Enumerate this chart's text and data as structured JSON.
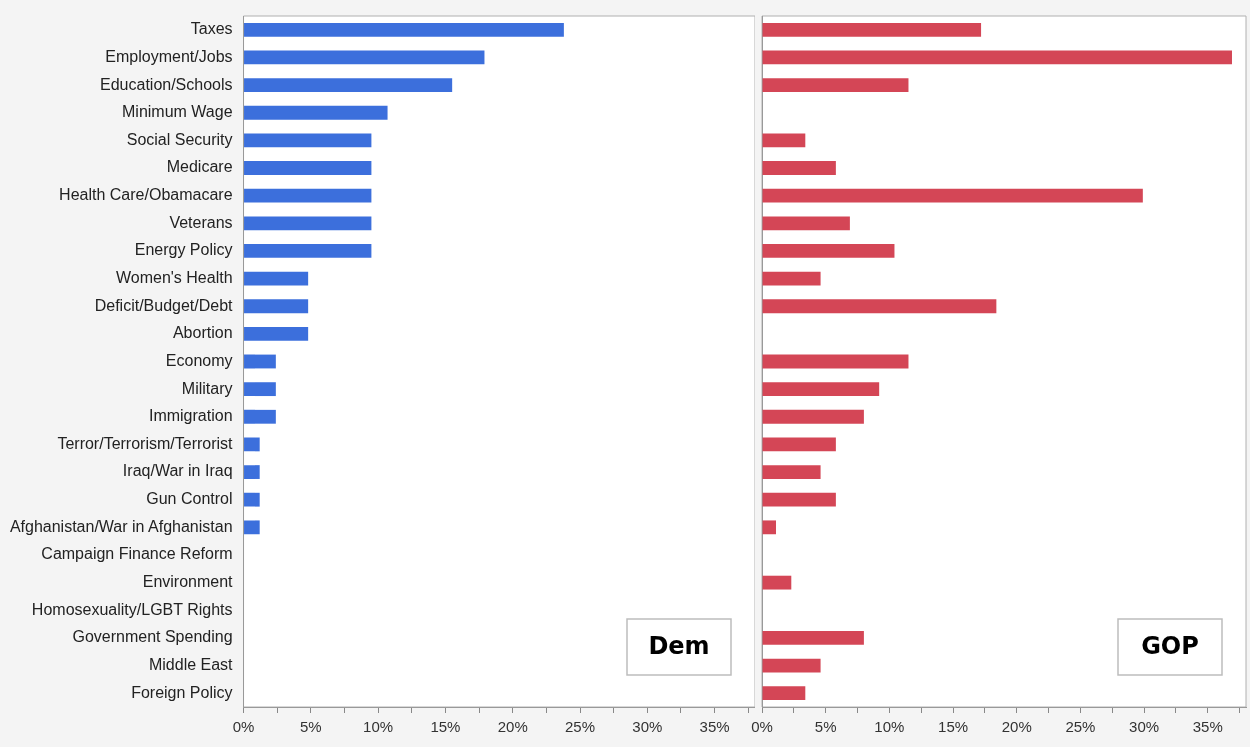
{
  "chart_data": [
    {
      "type": "bar",
      "orientation": "horizontal",
      "categories": [
        "Taxes",
        "Employment/Jobs",
        "Education/Schools",
        "Minimum Wage",
        "Social Security",
        "Medicare",
        "Health Care/Obamacare",
        "Veterans",
        "Energy Policy",
        "Women's Health",
        "Deficit/Budget/Debt",
        "Abortion",
        "Economy",
        "Military",
        "Immigration",
        "Terror/Terrorism/Terrorist",
        "Iraq/War in Iraq",
        "Gun Control",
        "Afghanistan/War in Afghanistan",
        "Campaign Finance Reform",
        "Environment",
        "Homosexuality/LGBT Rights",
        "Government Spending",
        "Middle East",
        "Foreign Policy"
      ],
      "series": [
        {
          "color": "#3c6fdc",
          "values": [
            23.8,
            17.9,
            15.5,
            10.7,
            9.5,
            9.5,
            9.5,
            9.5,
            9.5,
            4.8,
            4.8,
            4.8,
            2.4,
            2.4,
            2.4,
            1.2,
            1.2,
            1.2,
            1.2,
            null,
            null,
            null,
            null,
            null,
            null
          ]
        }
      ],
      "xlim": [
        0,
        38
      ],
      "xticks": [
        {
          "value": 0,
          "label": "0%"
        },
        {
          "value": 2.5,
          "label": null
        },
        {
          "value": 5,
          "label": "5%"
        },
        {
          "value": 7.5,
          "label": null
        },
        {
          "value": 10,
          "label": "10%"
        },
        {
          "value": 12.5,
          "label": null
        },
        {
          "value": 15,
          "label": "15%"
        },
        {
          "value": 17.5,
          "label": null
        },
        {
          "value": 20,
          "label": "20%"
        },
        {
          "value": 22.5,
          "label": null
        },
        {
          "value": 25,
          "label": "25%"
        },
        {
          "value": 27.5,
          "label": null
        },
        {
          "value": 30,
          "label": "30%"
        },
        {
          "value": 32.5,
          "label": null
        },
        {
          "value": 35,
          "label": "35%"
        },
        {
          "value": 37.5,
          "label": null
        }
      ],
      "annotations": [
        "Dem"
      ],
      "grid": false,
      "legend": false
    },
    {
      "type": "bar",
      "orientation": "horizontal",
      "categories": [
        null,
        null,
        null,
        null,
        null,
        null,
        null,
        null,
        null,
        null,
        null,
        null,
        null,
        null,
        null,
        null,
        null,
        null,
        null,
        null,
        null,
        null,
        null,
        null,
        null
      ],
      "series": [
        {
          "color": "#d44656",
          "values": [
            17.2,
            36.9,
            11.5,
            null,
            3.4,
            5.8,
            29.9,
            6.9,
            10.4,
            4.6,
            18.4,
            null,
            11.5,
            9.2,
            8.0,
            5.8,
            4.6,
            5.8,
            1.1,
            null,
            2.3,
            null,
            8.0,
            4.6,
            3.4
          ]
        }
      ],
      "xlim": [
        0,
        38
      ],
      "xticks": [
        {
          "value": 0,
          "label": "0%"
        },
        {
          "value": 2.5,
          "label": null
        },
        {
          "value": 5,
          "label": "5%"
        },
        {
          "value": 7.5,
          "label": null
        },
        {
          "value": 10,
          "label": "10%"
        },
        {
          "value": 12.5,
          "label": null
        },
        {
          "value": 15,
          "label": "15%"
        },
        {
          "value": 17.5,
          "label": null
        },
        {
          "value": 20,
          "label": "20%"
        },
        {
          "value": 22.5,
          "label": null
        },
        {
          "value": 25,
          "label": "25%"
        },
        {
          "value": 27.5,
          "label": null
        },
        {
          "value": 30,
          "label": "30%"
        },
        {
          "value": 32.5,
          "label": null
        },
        {
          "value": 35,
          "label": "35%"
        },
        {
          "value": 37.5,
          "label": null
        }
      ],
      "annotations": [
        "GOP"
      ],
      "tick_labels": "x",
      "grid": false,
      "legend": false
    }
  ]
}
